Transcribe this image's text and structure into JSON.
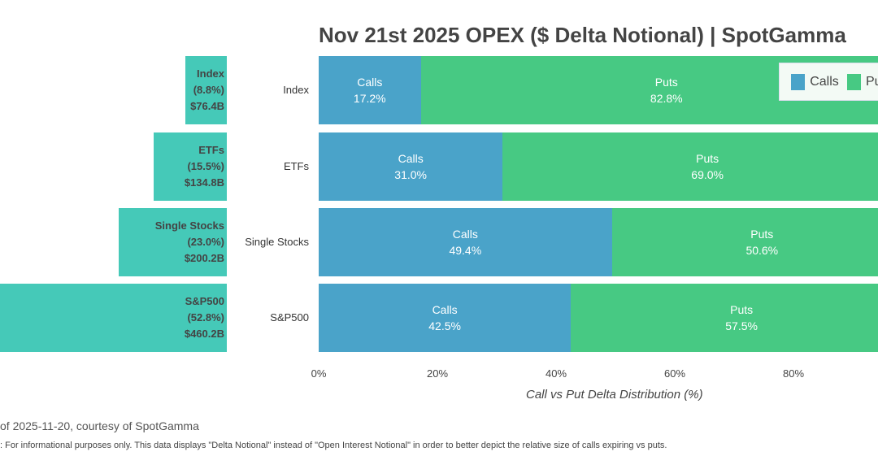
{
  "chart_data": {
    "type": "bar",
    "title": "Nov 21st 2025 OPEX ($ Delta Notional) | SpotGamma",
    "xlabel": "Call vs Put Delta Distribution (%)",
    "xlim": [
      0,
      100
    ],
    "x_ticks": [
      "0%",
      "20%",
      "40%",
      "60%",
      "80%"
    ],
    "categories": [
      "Index",
      "ETFs",
      "Single Stocks",
      "S&P500"
    ],
    "series": [
      {
        "name": "Calls",
        "color": "#4aa3c9",
        "segment_label": "Calls",
        "values": [
          17.2,
          31.0,
          49.4,
          42.5
        ],
        "labels": [
          "17.2%",
          "31.0%",
          "49.4%",
          "42.5%"
        ]
      },
      {
        "name": "Puts",
        "color": "#47c983",
        "segment_label": "Puts",
        "values": [
          82.8,
          69.0,
          50.6,
          57.5
        ],
        "labels": [
          "82.8%",
          "69.0%",
          "50.6%",
          "57.5%"
        ]
      }
    ],
    "legend": {
      "position": "top-right",
      "items": [
        "Calls",
        "Puts"
      ]
    },
    "side_bars": {
      "color": "#45c9b8",
      "share_pct": [
        8.8,
        15.5,
        23.0,
        52.8
      ],
      "labels": [
        [
          "Index",
          "(8.8%)",
          "$76.4B"
        ],
        [
          "ETFs",
          "(15.5%)",
          "$134.8B"
        ],
        [
          "Single Stocks",
          "(23.0%)",
          "$200.2B"
        ],
        [
          "S&P500",
          "(52.8%)",
          "$460.2B"
        ]
      ]
    }
  },
  "footer": {
    "source": "of 2025-11-20, courtesy of SpotGamma",
    "note": ": For informational purposes only. This data displays \"Delta Notional\" instead of \"Open Interest Notional\" in order to better depict the relative size of calls expiring vs puts."
  }
}
